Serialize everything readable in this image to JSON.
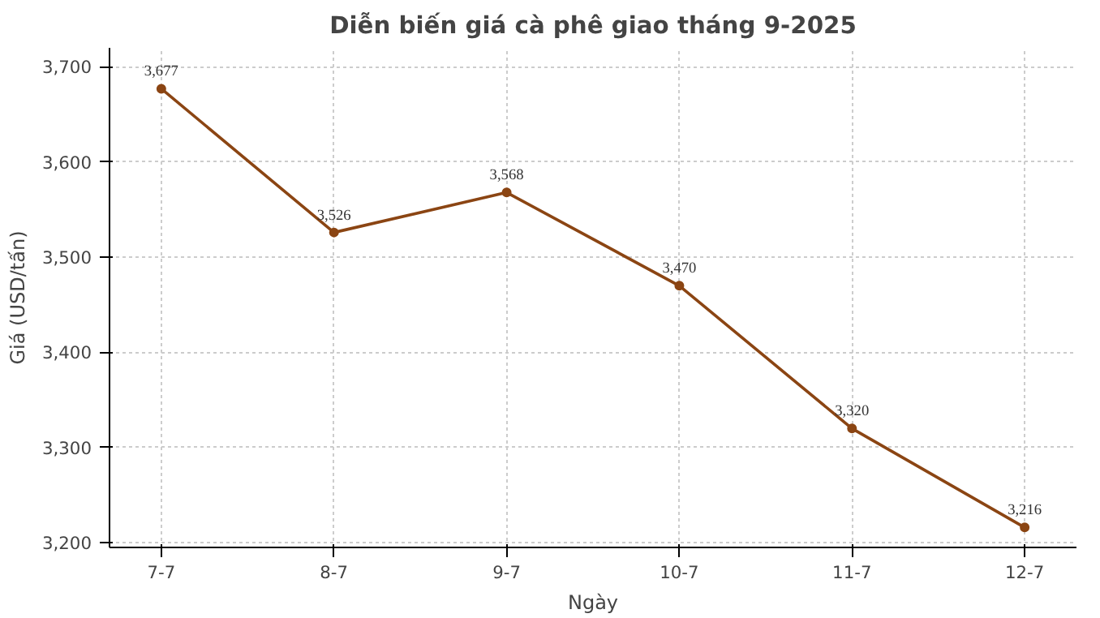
{
  "chart_data": {
    "type": "line",
    "title": "Diễn biến giá cà phê giao tháng 9-2025",
    "xlabel": "Ngày",
    "ylabel": "Giá (USD/tấn)",
    "categories": [
      "7-7",
      "8-7",
      "9-7",
      "10-7",
      "11-7",
      "12-7"
    ],
    "series": [
      {
        "color": "#8b4513",
        "values": [
          3677,
          3526,
          3568,
          3470,
          3320,
          3216
        ],
        "value_labels": [
          "3,677",
          "3,526",
          "3,568",
          "3,470",
          "3,320",
          "3,216"
        ]
      }
    ],
    "ylim": [
      3195,
      3720
    ],
    "yticks": [
      {
        "value": 3200,
        "label": "3,200"
      },
      {
        "value": 3300,
        "label": "3,300"
      },
      {
        "value": 3400,
        "label": "3,400"
      },
      {
        "value": 3500,
        "label": "3,500"
      },
      {
        "value": 3600,
        "label": "3,600"
      },
      {
        "value": 3700,
        "label": "3,700"
      }
    ],
    "grid": true,
    "marker": "circle",
    "line_style": "solid"
  }
}
